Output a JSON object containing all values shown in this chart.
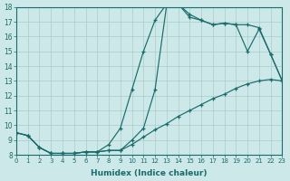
{
  "xlabel": "Humidex (Indice chaleur)",
  "xlim": [
    0,
    23
  ],
  "ylim": [
    8,
    18
  ],
  "xticks": [
    0,
    1,
    2,
    3,
    4,
    5,
    6,
    7,
    8,
    9,
    10,
    11,
    12,
    13,
    14,
    15,
    16,
    17,
    18,
    19,
    20,
    21,
    22,
    23
  ],
  "yticks": [
    8,
    9,
    10,
    11,
    12,
    13,
    14,
    15,
    16,
    17,
    18
  ],
  "bg_color": "#cce8e8",
  "grid_color": "#aacccc",
  "line_color": "#1a6b6b",
  "line1_x": [
    0,
    1,
    2,
    3,
    4,
    5,
    6,
    7,
    8,
    9,
    10,
    11,
    12,
    13,
    14,
    15,
    16,
    17,
    18,
    19,
    20,
    21,
    22,
    23
  ],
  "line1_y": [
    9.5,
    9.3,
    8.5,
    8.1,
    8.1,
    8.1,
    8.2,
    8.2,
    8.3,
    8.3,
    8.7,
    9.2,
    9.7,
    10.1,
    10.6,
    11.0,
    11.4,
    11.8,
    12.1,
    12.5,
    12.8,
    13.0,
    13.1,
    13.0
  ],
  "line2_x": [
    0,
    1,
    2,
    3,
    4,
    5,
    6,
    7,
    8,
    9,
    10,
    11,
    12,
    13,
    14,
    15,
    16,
    17,
    18,
    19,
    20,
    21,
    22,
    23
  ],
  "line2_y": [
    9.5,
    9.3,
    8.5,
    8.1,
    8.1,
    8.1,
    8.2,
    8.2,
    8.7,
    9.8,
    12.4,
    15.0,
    17.1,
    18.2,
    18.2,
    17.5,
    17.1,
    16.8,
    16.9,
    16.8,
    15.0,
    16.5,
    14.8,
    13.0
  ],
  "line3_x": [
    0,
    1,
    2,
    3,
    4,
    5,
    6,
    7,
    8,
    9,
    10,
    11,
    12,
    13,
    14,
    15,
    16,
    17,
    18,
    19,
    20,
    21,
    22,
    23
  ],
  "line3_y": [
    9.5,
    9.3,
    8.5,
    8.1,
    8.1,
    8.1,
    8.2,
    8.2,
    8.3,
    8.3,
    9.0,
    9.8,
    12.4,
    18.1,
    18.2,
    17.3,
    17.1,
    16.8,
    16.9,
    16.8,
    16.8,
    16.6,
    14.8,
    13.0
  ]
}
